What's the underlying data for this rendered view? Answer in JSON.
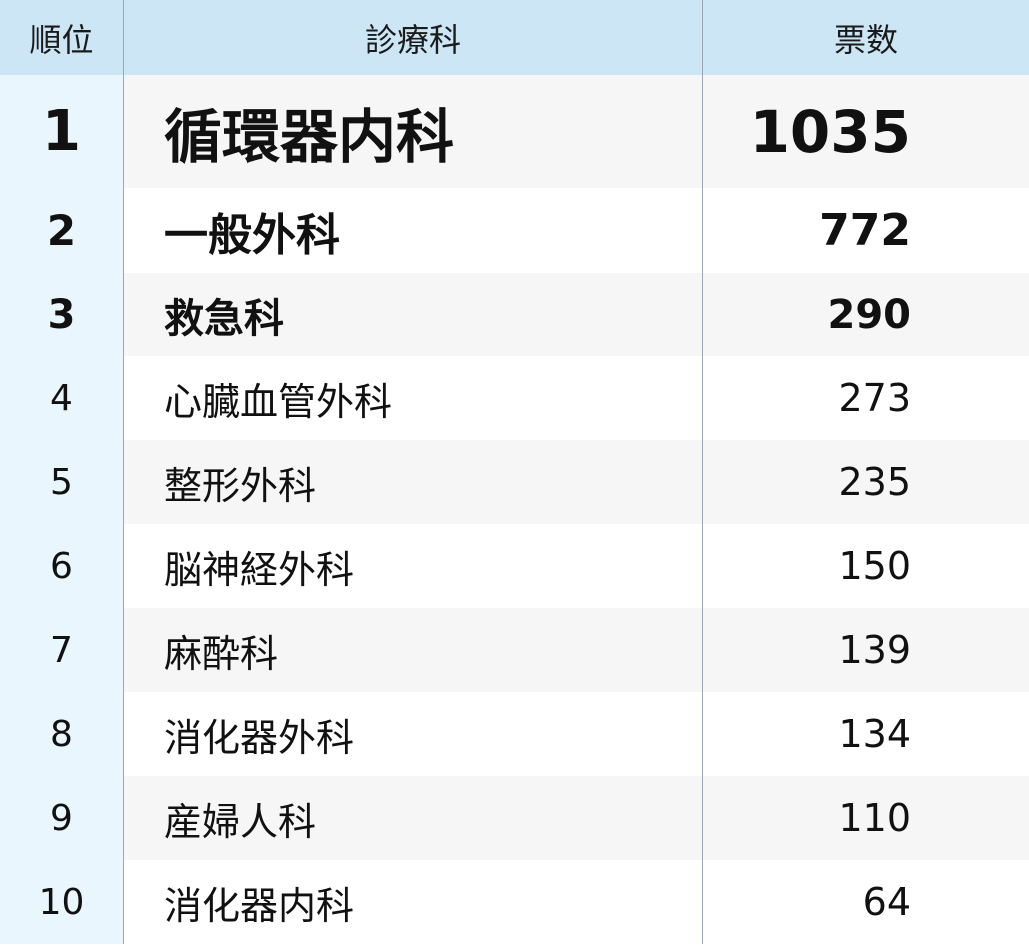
{
  "chart_data": {
    "type": "table",
    "columns": [
      "順位",
      "診療科",
      "票数"
    ],
    "rows": [
      {
        "rank": "1",
        "department": "循環器内科",
        "votes": 1035
      },
      {
        "rank": "2",
        "department": "一般外科",
        "votes": 772
      },
      {
        "rank": "3",
        "department": "救急科",
        "votes": 290
      },
      {
        "rank": "4",
        "department": "心臓血管外科",
        "votes": 273
      },
      {
        "rank": "5",
        "department": "整形外科",
        "votes": 235
      },
      {
        "rank": "6",
        "department": "脳神経外科",
        "votes": 150
      },
      {
        "rank": "7",
        "department": "麻酔科",
        "votes": 139
      },
      {
        "rank": "8",
        "department": "消化器外科",
        "votes": 134
      },
      {
        "rank": "9",
        "department": "産婦人科",
        "votes": 110
      },
      {
        "rank": "10",
        "department": "消化器内科",
        "votes": 64
      }
    ]
  },
  "colors": {
    "header_bg": "#cce6f5",
    "rank_col_bg": "#e9f6fd",
    "row_alt_bg": "#f6f6f6",
    "row_bg": "#ffffff",
    "divider": "#9aa8b5"
  }
}
